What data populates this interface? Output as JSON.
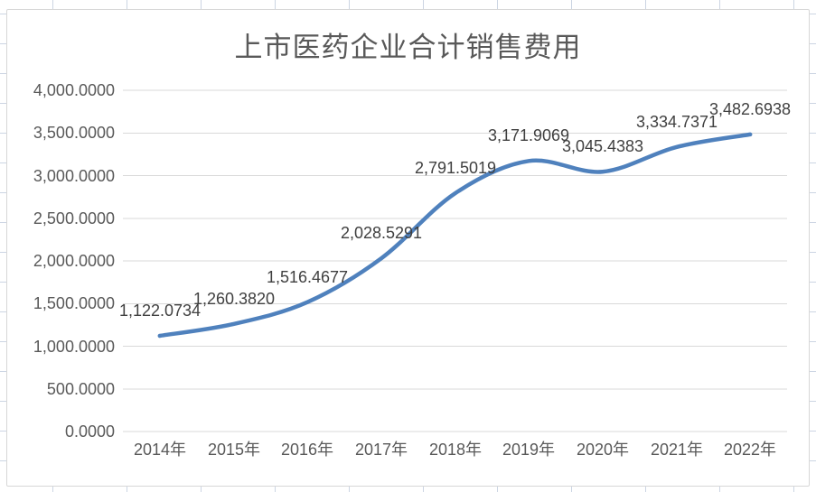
{
  "chart_data": {
    "type": "line",
    "title": "上市医药企业合计销售费用",
    "categories": [
      "2014年",
      "2015年",
      "2016年",
      "2017年",
      "2018年",
      "2019年",
      "2020年",
      "2021年",
      "2022年"
    ],
    "values": [
      1122.0734,
      1260.382,
      1516.4677,
      2028.5291,
      2791.5019,
      3171.9069,
      3045.4383,
      3334.7371,
      3482.6938
    ],
    "data_labels": [
      "1,122.0734",
      "1,260.3820",
      "1,516.4677",
      "2,028.5291",
      "2,791.5019",
      "3,171.9069",
      "3,045.4383",
      "3,334.7371",
      "3,482.6938"
    ],
    "y_tick_values": [
      0,
      500,
      1000,
      1500,
      2000,
      2500,
      3000,
      3500,
      4000
    ],
    "y_tick_labels": [
      "0.0000",
      "500.0000",
      "1,000.0000",
      "1,500.0000",
      "2,000.0000",
      "2,500.0000",
      "3,000.0000",
      "3,500.0000",
      "4,000.0000"
    ],
    "ylim": [
      0,
      4000
    ],
    "grid": "horizontal",
    "legend": "none",
    "smooth_line": true
  },
  "style": {
    "line_color": "#4F81BD",
    "gridline_color": "#D9D9D9",
    "chart_border_color": "#D7D7D7",
    "chart_background": "#FFFFFF",
    "axis_text_color": "#595959",
    "data_label_color": "#404040",
    "title_color": "#595959",
    "sheet_gridline_color": "#CCD5E3"
  }
}
